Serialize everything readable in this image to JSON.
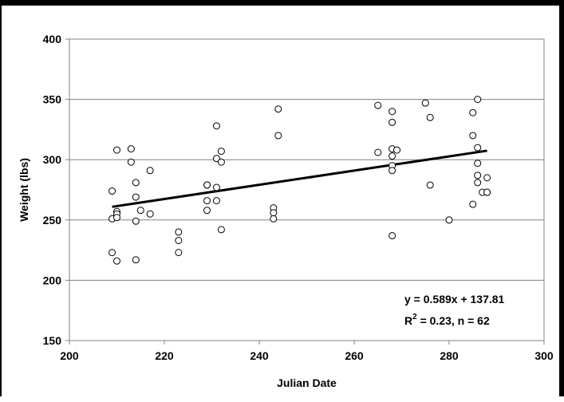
{
  "chart_data": {
    "type": "scatter",
    "title": "",
    "xlabel": "Julian Date",
    "ylabel": "Weight (lbs)",
    "xlim": [
      200,
      300
    ],
    "ylim": [
      150,
      400
    ],
    "x_ticks": [
      200,
      220,
      240,
      260,
      280,
      300
    ],
    "y_ticks": [
      150,
      200,
      250,
      300,
      350,
      400
    ],
    "grid": "horizontal",
    "series": [
      {
        "points": [
          [
            209,
            274
          ],
          [
            209,
            251
          ],
          [
            209,
            223
          ],
          [
            210,
            308
          ],
          [
            210,
            257
          ],
          [
            210,
            255
          ],
          [
            210,
            252
          ],
          [
            210,
            216
          ],
          [
            213,
            309
          ],
          [
            213,
            298
          ],
          [
            214,
            281
          ],
          [
            214,
            269
          ],
          [
            214,
            249
          ],
          [
            214,
            217
          ],
          [
            215,
            258
          ],
          [
            217,
            291
          ],
          [
            217,
            255
          ],
          [
            223,
            240
          ],
          [
            223,
            233
          ],
          [
            223,
            223
          ],
          [
            229,
            279
          ],
          [
            229,
            279
          ],
          [
            229,
            266
          ],
          [
            229,
            258
          ],
          [
            231,
            328
          ],
          [
            231,
            301
          ],
          [
            231,
            277
          ],
          [
            231,
            266
          ],
          [
            232,
            307
          ],
          [
            232,
            298
          ],
          [
            232,
            242
          ],
          [
            243,
            260
          ],
          [
            243,
            256
          ],
          [
            243,
            251
          ],
          [
            244,
            342
          ],
          [
            244,
            320
          ],
          [
            265,
            345
          ],
          [
            265,
            306
          ],
          [
            268,
            340
          ],
          [
            268,
            331
          ],
          [
            268,
            309
          ],
          [
            268,
            303
          ],
          [
            268,
            295
          ],
          [
            268,
            291
          ],
          [
            268,
            237
          ],
          [
            269,
            308
          ],
          [
            275,
            347
          ],
          [
            276,
            335
          ],
          [
            276,
            279
          ],
          [
            280,
            250
          ],
          [
            285,
            339
          ],
          [
            285,
            320
          ],
          [
            285,
            263
          ],
          [
            286,
            350
          ],
          [
            286,
            310
          ],
          [
            286,
            297
          ],
          [
            286,
            287
          ],
          [
            286,
            281
          ],
          [
            287,
            273
          ],
          [
            288,
            285
          ],
          [
            288,
            273
          ],
          [
            288,
            273
          ]
        ]
      }
    ],
    "trendline": {
      "slope": 0.589,
      "intercept": 137.81,
      "x_range": [
        209,
        288
      ]
    },
    "annotations": {
      "equation": "y = 0.589x + 137.81",
      "r2_prefix": "R",
      "r2_sup": "2",
      "r2_suffix": " = 0.23, n = 62"
    }
  }
}
